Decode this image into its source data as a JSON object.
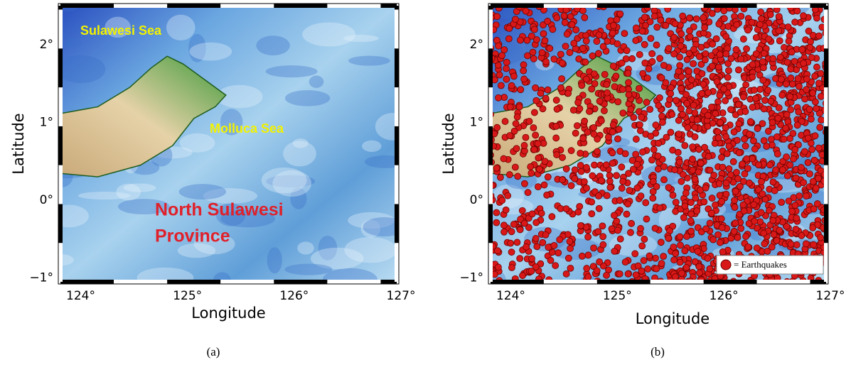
{
  "panels": [
    {
      "caption": "(a)",
      "x_axis_label": "Longitude",
      "y_axis_label": "Latitude",
      "x_tick_labels": [
        "124°",
        "125°",
        "126°",
        "127°"
      ],
      "y_tick_labels": [
        "2°",
        "1°",
        "0°",
        "−1°"
      ],
      "annotations": [
        "Sulawesi Sea",
        "Molluca Sea",
        "North Sulawesi",
        "Province"
      ]
    },
    {
      "caption": "(b)",
      "x_axis_label": "Longitude",
      "y_axis_label": "Latitude",
      "x_tick_labels": [
        "124°",
        "125°",
        "126°",
        "127°"
      ],
      "y_tick_labels": [
        "2°",
        "1°",
        "0°",
        "−1°"
      ],
      "legend": "= Earthquakes"
    }
  ]
}
